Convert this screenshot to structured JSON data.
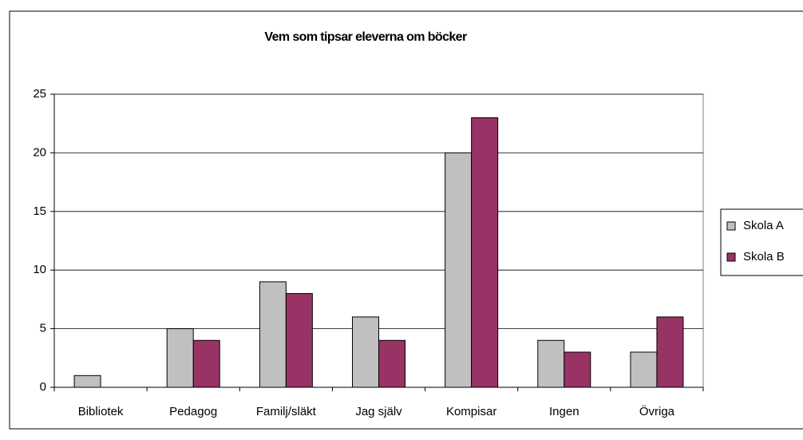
{
  "chart_data": {
    "type": "bar",
    "title": "Vem som tipsar eleverna om böcker",
    "categories": [
      "Bibliotek",
      "Pedagog",
      "Familj/släkt",
      "Jag själv",
      "Kompisar",
      "Ingen",
      "Övriga"
    ],
    "series": [
      {
        "name": "Skola A",
        "color": "#c0c0c0",
        "values": [
          1,
          5,
          9,
          6,
          20,
          4,
          3
        ]
      },
      {
        "name": "Skola B",
        "color": "#993366",
        "values": [
          0,
          4,
          8,
          4,
          23,
          3,
          6
        ]
      }
    ],
    "ylim": [
      0,
      25
    ],
    "yticks": [
      0,
      5,
      10,
      15,
      20,
      25
    ],
    "grid": true,
    "legend": "right"
  }
}
